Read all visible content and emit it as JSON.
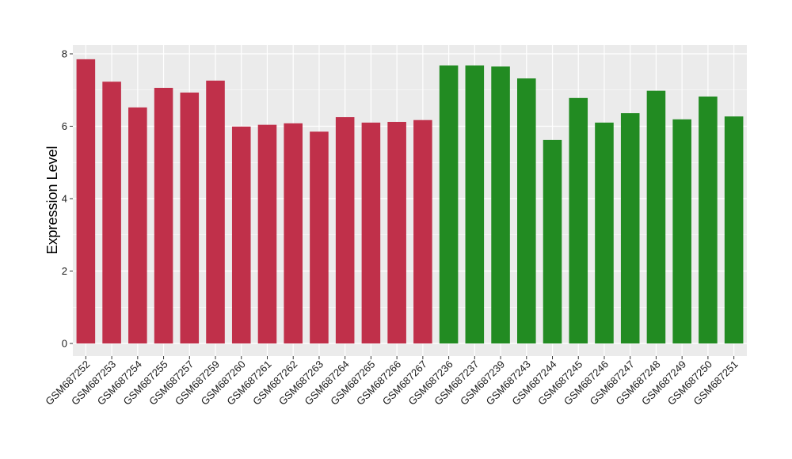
{
  "chart_data": {
    "type": "bar",
    "title": "",
    "xlabel": "",
    "ylabel": "Expression Level",
    "ylim": [
      0,
      8.0
    ],
    "yticks": [
      0,
      2,
      4,
      6,
      8
    ],
    "grid": true,
    "panel_background": "#ebebeb",
    "gridline_color": "#ffffff",
    "groups": [
      {
        "color": "#c0304a"
      },
      {
        "color": "#228b22"
      }
    ],
    "categories": [
      "GSM687252",
      "GSM687253",
      "GSM687254",
      "GSM687255",
      "GSM687257",
      "GSM687259",
      "GSM687260",
      "GSM687261",
      "GSM687262",
      "GSM687263",
      "GSM687264",
      "GSM687265",
      "GSM687266",
      "GSM687267",
      "GSM687236",
      "GSM687237",
      "GSM687239",
      "GSM687243",
      "GSM687244",
      "GSM687245",
      "GSM687246",
      "GSM687247",
      "GSM687248",
      "GSM687249",
      "GSM687250",
      "GSM687251"
    ],
    "values": [
      7.85,
      7.23,
      6.52,
      7.06,
      6.93,
      7.26,
      5.99,
      6.04,
      6.08,
      5.85,
      6.25,
      6.1,
      6.12,
      6.17,
      7.68,
      7.68,
      7.65,
      7.32,
      5.62,
      6.78,
      6.1,
      6.36,
      6.98,
      6.19,
      6.82,
      6.27
    ],
    "group_index": [
      0,
      0,
      0,
      0,
      0,
      0,
      0,
      0,
      0,
      0,
      0,
      0,
      0,
      0,
      1,
      1,
      1,
      1,
      1,
      1,
      1,
      1,
      1,
      1,
      1,
      1
    ]
  }
}
